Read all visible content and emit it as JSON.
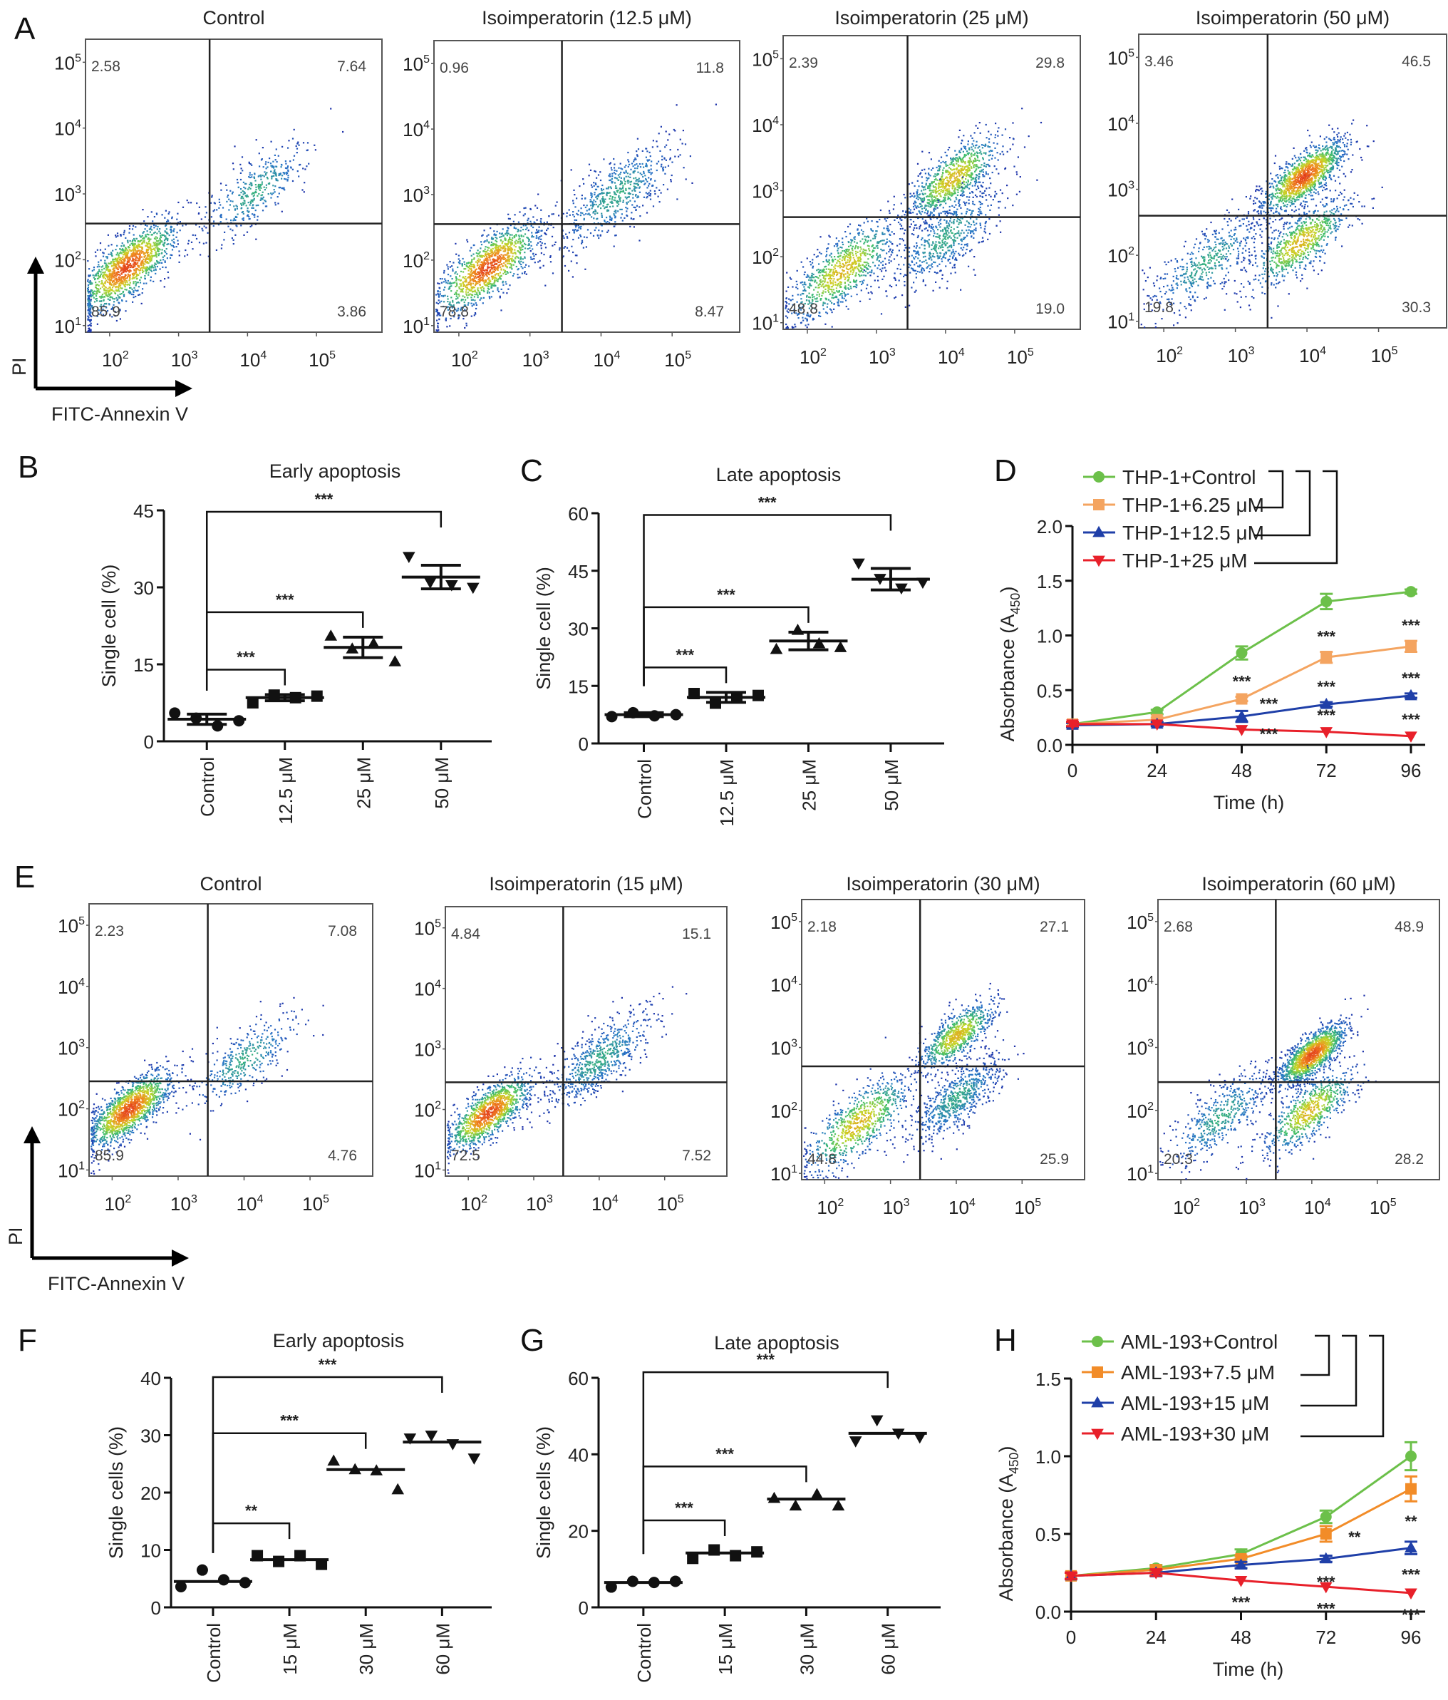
{
  "figure": {
    "panel_letters": [
      "A",
      "B",
      "C",
      "D",
      "E",
      "F",
      "G",
      "H"
    ]
  },
  "chart_data": [
    {
      "id": "A",
      "type": "scatter",
      "subtype": "flow-cytometry-quadrant",
      "xlabel": "FITC-Annexin V",
      "ylabel": "PI",
      "x_ticks": [
        "10^2",
        "10^3",
        "10^4",
        "10^5"
      ],
      "y_ticks": [
        "10^1",
        "10^2",
        "10^3",
        "10^4",
        "10^5"
      ],
      "x_scale": "log",
      "y_scale": "log",
      "plots": [
        {
          "title": "Control",
          "quadrants": {
            "UL": "2.58",
            "UR": "7.64",
            "LL": "85.9",
            "LR": "3.86"
          },
          "clusters": [
            {
              "x": 2.25,
              "y": 1.9,
              "spread": 0.32,
              "n": 1400,
              "density": "high"
            },
            {
              "x": 4.1,
              "y": 3.05,
              "spread": 0.35,
              "n": 420,
              "density": "low"
            }
          ]
        },
        {
          "title": "Isoimperatorin (12.5 μM)",
          "quadrants": {
            "UL": "0.96",
            "UR": "11.8",
            "LL": "78.8",
            "LR": "8.47"
          },
          "clusters": [
            {
              "x": 2.4,
              "y": 1.9,
              "spread": 0.32,
              "n": 1200,
              "density": "high"
            },
            {
              "x": 4.2,
              "y": 3.0,
              "spread": 0.38,
              "n": 650,
              "density": "low"
            }
          ]
        },
        {
          "title": "Isoimperatorin (25 μM)",
          "quadrants": {
            "UL": "2.39",
            "UR": "29.8",
            "LL": "48.8",
            "LR": "19.0"
          },
          "clusters": [
            {
              "x": 2.5,
              "y": 1.8,
              "spread": 0.35,
              "n": 900,
              "density": "mid"
            },
            {
              "x": 4.1,
              "y": 3.2,
              "spread": 0.3,
              "n": 900,
              "density": "mid"
            },
            {
              "x": 4.0,
              "y": 2.3,
              "spread": 0.35,
              "n": 600,
              "density": "low"
            }
          ]
        },
        {
          "title": "Isoimperatorin (50 μM)",
          "quadrants": {
            "UL": "3.46",
            "UR": "46.5",
            "LL": "19.8",
            "LR": "30.3"
          },
          "clusters": [
            {
              "x": 2.6,
              "y": 1.9,
              "spread": 0.35,
              "n": 500,
              "density": "low"
            },
            {
              "x": 3.95,
              "y": 3.2,
              "spread": 0.25,
              "n": 1300,
              "density": "high"
            },
            {
              "x": 3.9,
              "y": 2.2,
              "spread": 0.3,
              "n": 800,
              "density": "mid"
            }
          ]
        }
      ]
    },
    {
      "id": "B",
      "type": "scatter",
      "subtype": "dot-plot-mean-sd",
      "title": "Early apoptosis",
      "ylabel": "Single cell (%)",
      "categories": [
        "Control",
        "12.5 μM",
        "25 μM",
        "50 μM"
      ],
      "markers": [
        "circle",
        "square",
        "triangle-up",
        "triangle-down"
      ],
      "ylim": [
        0,
        45
      ],
      "yticks": [
        0,
        15,
        30,
        45
      ],
      "points": [
        [
          5.5,
          4.5,
          3.0,
          4.0
        ],
        [
          7.5,
          9.0,
          8.5,
          8.8
        ],
        [
          20.5,
          18.0,
          19.0,
          15.5
        ],
        [
          36.0,
          31.0,
          30.5,
          30.0
        ]
      ],
      "mean": [
        4.3,
        8.5,
        18.3,
        32.0
      ],
      "sd": [
        1.0,
        0.6,
        2.0,
        2.3
      ],
      "comparisons": [
        {
          "from": "Control",
          "to": "12.5 μM",
          "label": "***"
        },
        {
          "from": "Control",
          "to": "25 μM",
          "label": "***"
        },
        {
          "from": "Control",
          "to": "50 μM",
          "label": "***"
        }
      ]
    },
    {
      "id": "C",
      "type": "scatter",
      "subtype": "dot-plot-mean-sd",
      "title": "Late apoptosis",
      "ylabel": "Single cell (%)",
      "categories": [
        "Control",
        "12.5 μM",
        "25 μM",
        "50 μM"
      ],
      "markers": [
        "circle",
        "square",
        "triangle-up",
        "triangle-down"
      ],
      "ylim": [
        0,
        60
      ],
      "yticks": [
        0,
        15,
        30,
        45,
        60
      ],
      "points": [
        [
          7.0,
          8.0,
          7.2,
          7.5
        ],
        [
          13.0,
          10.5,
          12.0,
          12.5
        ],
        [
          24.5,
          29.5,
          26.0,
          25.0
        ],
        [
          47.0,
          43.0,
          40.5,
          42.0
        ]
      ],
      "mean": [
        7.5,
        12.0,
        26.7,
        42.8
      ],
      "sd": [
        0.5,
        1.3,
        2.3,
        2.8
      ],
      "comparisons": [
        {
          "from": "Control",
          "to": "12.5 μM",
          "label": "***"
        },
        {
          "from": "Control",
          "to": "25 μM",
          "label": "***"
        },
        {
          "from": "Control",
          "to": "50 μM",
          "label": "***"
        }
      ]
    },
    {
      "id": "D",
      "type": "line",
      "xlabel": "Time (h)",
      "ylabel": "Absorbance (A450)",
      "x": [
        0,
        24,
        48,
        72,
        96
      ],
      "xlim": [
        0,
        96
      ],
      "ylim": [
        0,
        2.0
      ],
      "yticks": [
        "0.0",
        "0.5",
        "1.0",
        "1.5",
        "2.0"
      ],
      "legend_position": "top-left",
      "series": [
        {
          "name": "THP-1+Control",
          "color": "#6cc04a",
          "marker": "circle",
          "values": [
            0.19,
            0.3,
            0.84,
            1.31,
            1.4
          ],
          "err": [
            0.02,
            0.02,
            0.06,
            0.07,
            0.02
          ],
          "sig": [
            "",
            "",
            "",
            "",
            ""
          ]
        },
        {
          "name": "THP-1+6.25 μM",
          "color": "#f4a460",
          "marker": "square",
          "values": [
            0.19,
            0.23,
            0.42,
            0.8,
            0.9
          ],
          "err": [
            0.02,
            0.02,
            0.02,
            0.05,
            0.05
          ],
          "sig": [
            "",
            "",
            "***",
            "***",
            "***"
          ]
        },
        {
          "name": "THP-1+12.5 μM",
          "color": "#1f3fa8",
          "marker": "triangle-up",
          "values": [
            0.18,
            0.19,
            0.26,
            0.37,
            0.45
          ],
          "err": [
            0.02,
            0.02,
            0.05,
            0.02,
            0.02
          ],
          "sig": [
            "",
            "",
            "***",
            "***",
            "***"
          ]
        },
        {
          "name": "THP-1+25 μM",
          "color": "#e8202a",
          "marker": "triangle-down",
          "values": [
            0.19,
            0.19,
            0.14,
            0.12,
            0.08
          ],
          "err": [
            0.02,
            0.01,
            0.01,
            0.01,
            0.01
          ],
          "sig": [
            "",
            "",
            "***",
            "***",
            "***"
          ]
        }
      ]
    },
    {
      "id": "E",
      "type": "scatter",
      "subtype": "flow-cytometry-quadrant",
      "xlabel": "FITC-Annexin V",
      "ylabel": "PI",
      "x_ticks": [
        "10^2",
        "10^3",
        "10^4",
        "10^5"
      ],
      "y_ticks": [
        "10^1",
        "10^2",
        "10^3",
        "10^4",
        "10^5"
      ],
      "x_scale": "log",
      "y_scale": "log",
      "plots": [
        {
          "title": "Control",
          "quadrants": {
            "UL": "2.23",
            "UR": "7.08",
            "LL": "85.9",
            "LR": "4.76"
          },
          "clusters": [
            {
              "x": 2.25,
              "y": 2.0,
              "spread": 0.28,
              "n": 1400,
              "density": "high"
            },
            {
              "x": 4.0,
              "y": 2.8,
              "spread": 0.35,
              "n": 400,
              "density": "low"
            }
          ]
        },
        {
          "title": "Isoimperatorin (15 μM)",
          "quadrants": {
            "UL": "4.84",
            "UR": "15.1",
            "LL": "72.5",
            "LR": "7.52"
          },
          "clusters": [
            {
              "x": 2.3,
              "y": 1.95,
              "spread": 0.28,
              "n": 1200,
              "density": "high"
            },
            {
              "x": 4.0,
              "y": 2.85,
              "spread": 0.35,
              "n": 700,
              "density": "low"
            }
          ]
        },
        {
          "title": "Isoimperatorin (30 μM)",
          "quadrants": {
            "UL": "2.18",
            "UR": "27.1",
            "LL": "44.8",
            "LR": "25.9"
          },
          "clusters": [
            {
              "x": 2.5,
              "y": 1.8,
              "spread": 0.35,
              "n": 800,
              "density": "mid"
            },
            {
              "x": 4.0,
              "y": 3.2,
              "spread": 0.25,
              "n": 800,
              "density": "mid"
            },
            {
              "x": 4.0,
              "y": 2.2,
              "spread": 0.3,
              "n": 700,
              "density": "low"
            }
          ]
        },
        {
          "title": "Isoimperatorin (60 μM)",
          "quadrants": {
            "UL": "2.68",
            "UR": "48.9",
            "LL": "20.3",
            "LR": "28.2"
          },
          "clusters": [
            {
              "x": 2.6,
              "y": 1.9,
              "spread": 0.35,
              "n": 500,
              "density": "low"
            },
            {
              "x": 4.0,
              "y": 2.9,
              "spread": 0.22,
              "n": 1400,
              "density": "high"
            },
            {
              "x": 3.95,
              "y": 2.0,
              "spread": 0.3,
              "n": 700,
              "density": "mid"
            }
          ]
        }
      ]
    },
    {
      "id": "F",
      "type": "scatter",
      "subtype": "dot-plot-median",
      "title": "Early apoptosis",
      "ylabel": "Single cells (%)",
      "categories": [
        "Control",
        "15 μM",
        "30 μM",
        "60 μM"
      ],
      "markers": [
        "circle",
        "square",
        "triangle-up",
        "triangle-down"
      ],
      "ylim": [
        0,
        40
      ],
      "yticks": [
        0,
        10,
        20,
        30,
        40
      ],
      "points": [
        [
          3.6,
          6.5,
          4.8,
          4.3
        ],
        [
          9.0,
          8.0,
          9.0,
          7.5
        ],
        [
          25.5,
          24.0,
          23.8,
          20.5
        ],
        [
          29.5,
          30.0,
          28.5,
          26.0
        ]
      ],
      "mean": [
        4.5,
        8.3,
        24.0,
        28.8
      ],
      "comparisons": [
        {
          "from": "Control",
          "to": "15 μM",
          "label": "**"
        },
        {
          "from": "Control",
          "to": "30 μM",
          "label": "***"
        },
        {
          "from": "Control",
          "to": "60 μM",
          "label": "***"
        }
      ]
    },
    {
      "id": "G",
      "type": "scatter",
      "subtype": "dot-plot-median",
      "title": "Late apoptosis",
      "ylabel": "Single cells (%)",
      "categories": [
        "Control",
        "15 μM",
        "30 μM",
        "60 μM"
      ],
      "markers": [
        "circle",
        "square",
        "triangle-up",
        "triangle-down"
      ],
      "ylim": [
        0,
        60
      ],
      "yticks": [
        0,
        20,
        40,
        60
      ],
      "points": [
        [
          5.3,
          6.8,
          6.5,
          6.8
        ],
        [
          12.8,
          15.0,
          13.5,
          14.5
        ],
        [
          28.5,
          26.5,
          29.5,
          26.5
        ],
        [
          43.5,
          49.0,
          45.5,
          44.5
        ]
      ],
      "mean": [
        6.5,
        14.2,
        28.3,
        45.5
      ],
      "comparisons": [
        {
          "from": "Control",
          "to": "15 μM",
          "label": "***"
        },
        {
          "from": "Control",
          "to": "30 μM",
          "label": "***"
        },
        {
          "from": "Control",
          "to": "60 μM",
          "label": "***"
        }
      ]
    },
    {
      "id": "H",
      "type": "line",
      "xlabel": "Time (h)",
      "ylabel": "Absorbance (A450)",
      "x": [
        0,
        24,
        48,
        72,
        96
      ],
      "xlim": [
        0,
        96
      ],
      "ylim": [
        0,
        1.5
      ],
      "yticks": [
        "0.0",
        "0.5",
        "1.0",
        "1.5"
      ],
      "legend_position": "top-left",
      "series": [
        {
          "name": "AML-193+Control",
          "color": "#6cc04a",
          "marker": "circle",
          "values": [
            0.23,
            0.28,
            0.37,
            0.61,
            1.0
          ],
          "err": [
            0.02,
            0.02,
            0.03,
            0.04,
            0.09
          ],
          "sig": [
            "",
            "",
            "",
            "",
            ""
          ]
        },
        {
          "name": "AML-193+7.5 μM",
          "color": "#f28c28",
          "marker": "square",
          "values": [
            0.23,
            0.27,
            0.34,
            0.5,
            0.79
          ],
          "err": [
            0.02,
            0.02,
            0.02,
            0.05,
            0.08
          ],
          "sig": [
            "",
            "",
            "",
            "**",
            "**"
          ]
        },
        {
          "name": "AML-193+15 μM",
          "color": "#1f3fa8",
          "marker": "triangle-up",
          "values": [
            0.23,
            0.25,
            0.3,
            0.34,
            0.41
          ],
          "err": [
            0.02,
            0.02,
            0.02,
            0.02,
            0.04
          ],
          "sig": [
            "",
            "",
            "",
            "***",
            "***"
          ]
        },
        {
          "name": "AML-193+30 μM",
          "color": "#e8202a",
          "marker": "triangle-down",
          "values": [
            0.23,
            0.25,
            0.2,
            0.16,
            0.12
          ],
          "err": [
            0.02,
            0.02,
            0.01,
            0.01,
            0.01
          ],
          "sig": [
            "",
            "",
            "***",
            "***",
            "***"
          ]
        }
      ]
    }
  ]
}
